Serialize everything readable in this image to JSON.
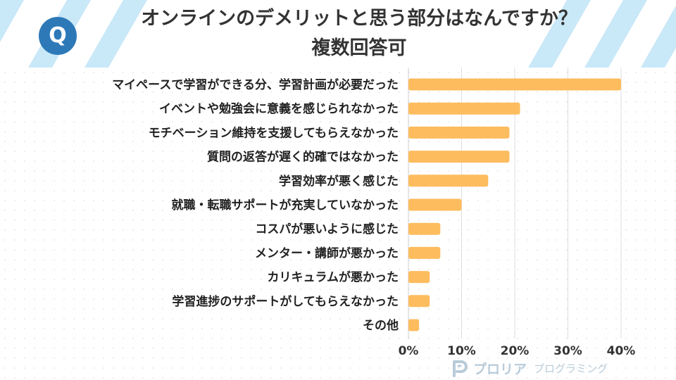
{
  "header": {
    "badge": "Q",
    "title_line1": "オンラインのデメリットと思う部分はなんですか？",
    "title_line2": "複数回答可"
  },
  "chart_data": {
    "type": "bar",
    "orientation": "horizontal",
    "categories": [
      "マイペースで学習ができる分、学習計画が必要だった",
      "イベントや勉強会に意義を感じられなかった",
      "モチベーション維持を支援してもらえなかった",
      "質問の返答が遅く的確ではなかった",
      "学習効率が悪く感じた",
      "就職・転職サポートが充実していなかった",
      "コスパが悪いように感じた",
      "メンター・講師が悪かった",
      "カリキュラムが悪かった",
      "学習進捗のサポートがしてもらえなかった",
      "その他"
    ],
    "values": [
      40,
      21,
      19,
      19,
      15,
      10,
      6,
      6,
      4,
      4,
      2
    ],
    "xlim": [
      0,
      40
    ],
    "xticks": [
      "0%",
      "10%",
      "20%",
      "30%",
      "40%"
    ],
    "grid": true,
    "bar_color": "#fdbc5e"
  },
  "footer": {
    "logo_name": "プロリア",
    "logo_sub": "プログラミング"
  }
}
